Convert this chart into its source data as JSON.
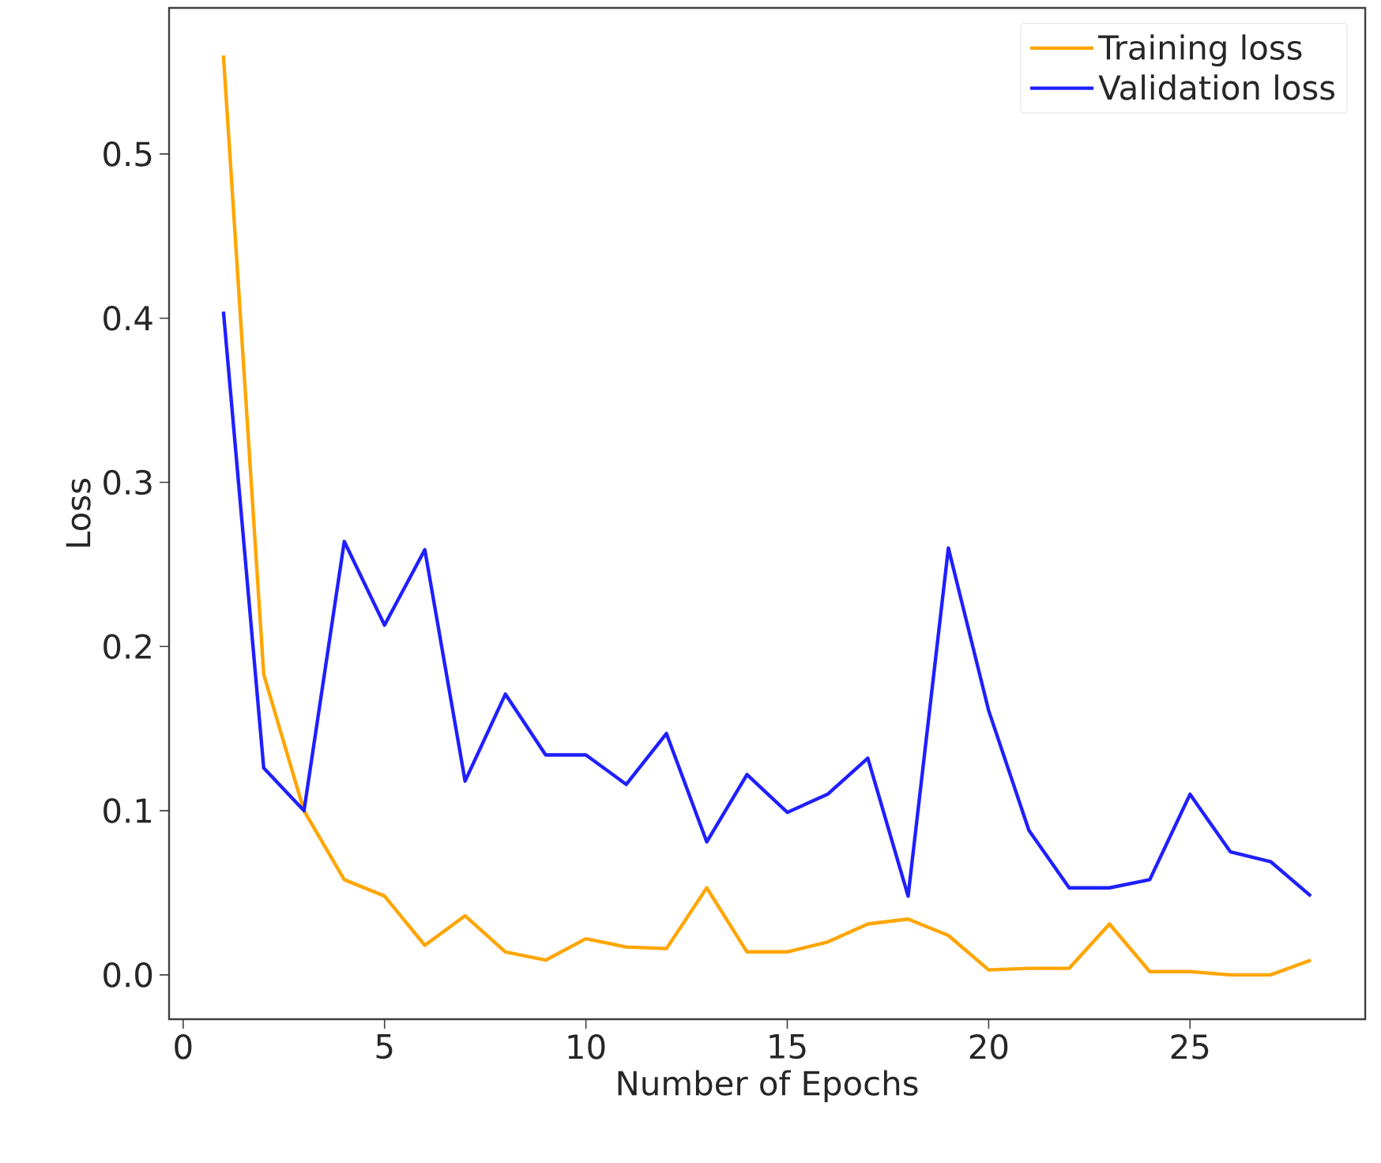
{
  "chart_data": {
    "type": "line",
    "xlabel": "Number of Epochs",
    "ylabel": "Loss",
    "x": [
      1,
      2,
      3,
      4,
      5,
      6,
      7,
      8,
      9,
      10,
      11,
      12,
      13,
      14,
      15,
      16,
      17,
      18,
      19,
      20,
      21,
      22,
      23,
      24,
      25,
      26,
      27,
      28
    ],
    "series": [
      {
        "name": "Training loss",
        "color": "#ffa500",
        "values": [
          0.56,
          0.183,
          0.1,
          0.058,
          0.048,
          0.018,
          0.036,
          0.014,
          0.009,
          0.022,
          0.017,
          0.016,
          0.053,
          0.014,
          0.014,
          0.02,
          0.031,
          0.034,
          0.024,
          0.003,
          0.004,
          0.004,
          0.031,
          0.002,
          0.002,
          0.0,
          0.0,
          0.009
        ]
      },
      {
        "name": "Validation loss",
        "color": "#1f1fff",
        "values": [
          0.404,
          0.126,
          0.1,
          0.264,
          0.213,
          0.259,
          0.118,
          0.171,
          0.134,
          0.134,
          0.116,
          0.147,
          0.081,
          0.122,
          0.099,
          0.11,
          0.132,
          0.048,
          0.26,
          0.161,
          0.088,
          0.053,
          0.053,
          0.058,
          0.11,
          0.075,
          0.069,
          0.048
        ]
      }
    ],
    "xlim": [
      -0.35,
      29.35
    ],
    "ylim": [
      -0.027,
      0.589
    ],
    "xticks": [
      0,
      5,
      10,
      15,
      20,
      25
    ],
    "yticks": [
      {
        "value": 0,
        "label": "0.0"
      },
      0.1,
      0.2,
      0.3,
      0.4,
      0.5
    ],
    "legend": "top right",
    "grid": false,
    "marker": "none",
    "line_style": "solid"
  }
}
